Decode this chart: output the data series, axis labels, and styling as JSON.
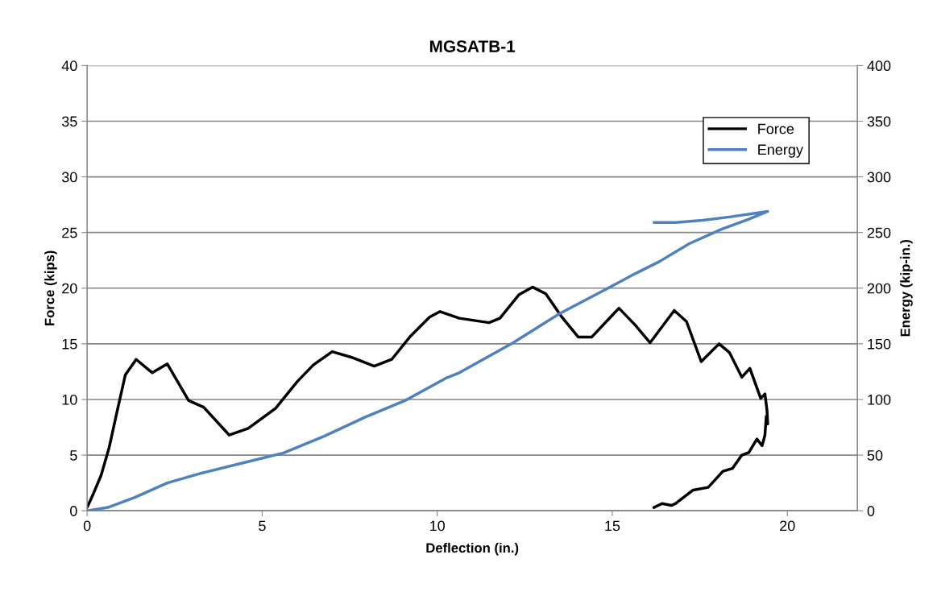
{
  "chart_data": {
    "type": "line",
    "title": "MGSATB-1",
    "xlabel": "Deflection (in.)",
    "ylabel": "Force (kips)",
    "y2label": "Energy (kip-in.)",
    "xlim": [
      0,
      22
    ],
    "xticks": [
      0,
      5,
      10,
      15,
      20
    ],
    "ylim": [
      0,
      40
    ],
    "yticks": [
      0,
      5,
      10,
      15,
      20,
      25,
      30,
      35,
      40
    ],
    "y2lim": [
      0,
      400
    ],
    "y2ticks": [
      0,
      50,
      100,
      150,
      200,
      250,
      300,
      350,
      400
    ],
    "grid": "y",
    "legend": "top right",
    "marker": "none",
    "line_style": "solid",
    "series": [
      {
        "name": "Force",
        "color": "#000000",
        "x": [
          0,
          0.16,
          0.4,
          0.63,
          0.86,
          1.09,
          1.4,
          1.86,
          2.29,
          2.9,
          3.33,
          4.06,
          4.6,
          5.38,
          6.0,
          6.46,
          7.0,
          7.54,
          8.2,
          8.7,
          9.24,
          9.78,
          10.08,
          10.63,
          11.48,
          11.79,
          12.33,
          12.72,
          13.1,
          13.56,
          14.03,
          14.41,
          15.19,
          15.65,
          16.08,
          16.77,
          17.12,
          17.54,
          18.05,
          18.35,
          18.7,
          18.93,
          19.24,
          19.36,
          19.42,
          19.44,
          19.4,
          19.36,
          19.28,
          19.13,
          18.9,
          18.7,
          18.43,
          18.16,
          17.74,
          17.31,
          16.81,
          16.69,
          16.42,
          16.19
        ],
        "values": [
          0.3,
          1.4,
          3.2,
          5.7,
          9.0,
          12.2,
          13.6,
          12.4,
          13.2,
          9.9,
          9.3,
          6.8,
          7.4,
          9.2,
          11.6,
          13.1,
          14.3,
          13.8,
          13.0,
          13.6,
          15.7,
          17.4,
          17.9,
          17.3,
          16.9,
          17.3,
          19.4,
          20.1,
          19.5,
          17.4,
          15.6,
          15.6,
          18.2,
          16.7,
          15.1,
          18.0,
          17.0,
          13.4,
          15.0,
          14.2,
          12.0,
          12.8,
          10.1,
          10.5,
          9.0,
          7.8,
          8.5,
          6.8,
          5.85,
          6.45,
          5.24,
          5.0,
          3.8,
          3.55,
          2.1,
          1.86,
          0.65,
          0.48,
          0.65,
          0.29
        ]
      },
      {
        "name": "Energy",
        "color": "#4f81bd",
        "axis": "y2",
        "x": [
          0,
          0.59,
          1.36,
          2.29,
          3.29,
          4.45,
          5.61,
          6.77,
          7.93,
          9.08,
          10.24,
          10.63,
          12.17,
          13.49,
          14.88,
          15.65,
          16.35,
          17.2,
          18.12,
          18.9,
          19.44,
          18.35,
          17.58,
          16.81,
          16.19
        ],
        "values": [
          0,
          3,
          12,
          25,
          34,
          43,
          52,
          67,
          84,
          99,
          119,
          124,
          151,
          177,
          200,
          213,
          224,
          240,
          253,
          262,
          269,
          264,
          261,
          259,
          259
        ]
      }
    ]
  }
}
